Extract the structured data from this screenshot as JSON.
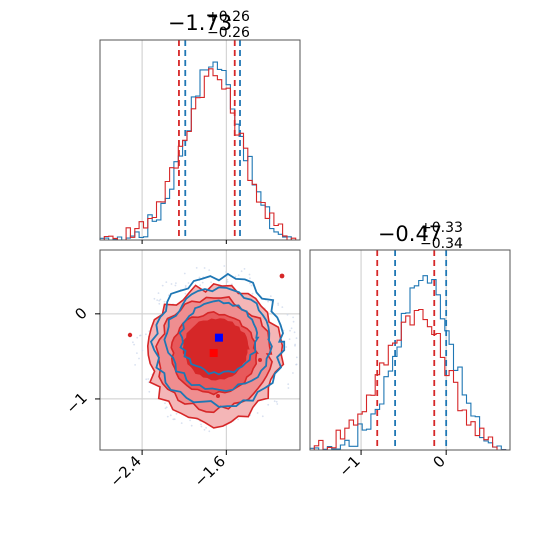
{
  "chart_data": [
    {
      "panel": "marginal-top",
      "type": "line",
      "title": {
        "value": "−1.73",
        "plus": "+0.26",
        "minus": "−0.26"
      },
      "xlim": [
        -2.8,
        -0.9
      ],
      "xticks": [
        -2.4,
        -1.6
      ],
      "xlabel": "",
      "ylabel": "",
      "grid": true,
      "series": [
        {
          "color": "#1f77b4",
          "x": [
            -2.75,
            -2.55,
            -2.45,
            -2.35,
            -2.25,
            -2.15,
            -2.05,
            -1.95,
            -1.85,
            -1.75,
            -1.65,
            -1.55,
            -1.45,
            -1.35,
            -1.25,
            -1.15,
            -1.05,
            -0.95
          ],
          "y": [
            0.0,
            0.01,
            0.03,
            0.07,
            0.14,
            0.27,
            0.46,
            0.67,
            0.88,
            1.0,
            0.96,
            0.8,
            0.57,
            0.35,
            0.18,
            0.07,
            0.02,
            0.0
          ],
          "quantiles": [
            -1.99,
            -1.47
          ]
        },
        {
          "color": "#d62728",
          "x": [
            -2.75,
            -2.55,
            -2.45,
            -2.35,
            -2.25,
            -2.15,
            -2.05,
            -1.95,
            -1.85,
            -1.75,
            -1.65,
            -1.55,
            -1.45,
            -1.35,
            -1.25,
            -1.15,
            -1.05,
            -0.95
          ],
          "y": [
            0.01,
            0.03,
            0.06,
            0.11,
            0.19,
            0.31,
            0.47,
            0.66,
            0.83,
            0.93,
            0.89,
            0.74,
            0.54,
            0.34,
            0.18,
            0.08,
            0.03,
            0.01
          ],
          "quantiles": [
            -2.05,
            -1.52
          ]
        }
      ]
    },
    {
      "panel": "joint",
      "type": "contour",
      "xlim": [
        -2.8,
        -0.9
      ],
      "ylim": [
        -1.6,
        0.75
      ],
      "xticks": [
        -2.4,
        -1.6
      ],
      "yticks": [
        0,
        -1
      ],
      "grid": true,
      "series": [
        {
          "color": "#1f77b4",
          "center": {
            "x": -1.67,
            "y": -0.28
          }
        },
        {
          "color": "#d62728",
          "center": {
            "x": -1.72,
            "y": -0.46
          }
        }
      ]
    },
    {
      "panel": "marginal-right",
      "type": "line",
      "title": {
        "value": "−0.47",
        "plus": "+0.33",
        "minus": "−0.34"
      },
      "xlim": [
        -1.6,
        0.75
      ],
      "xticks": [
        -1,
        0
      ],
      "xlabel": "",
      "ylabel": "",
      "grid": true,
      "series": [
        {
          "color": "#1f77b4",
          "x": [
            -1.55,
            -1.35,
            -1.2,
            -1.05,
            -0.9,
            -0.75,
            -0.6,
            -0.45,
            -0.3,
            -0.15,
            0.0,
            0.15,
            0.3,
            0.45,
            0.6,
            0.7
          ],
          "y": [
            0.0,
            0.01,
            0.03,
            0.07,
            0.16,
            0.31,
            0.55,
            0.8,
            0.98,
            0.93,
            0.72,
            0.42,
            0.19,
            0.07,
            0.02,
            0.0
          ],
          "quantiles": [
            -0.6,
            0.0
          ]
        },
        {
          "color": "#d62728",
          "x": [
            -1.55,
            -1.35,
            -1.2,
            -1.05,
            -0.9,
            -0.75,
            -0.6,
            -0.45,
            -0.3,
            -0.15,
            0.0,
            0.15,
            0.3,
            0.45,
            0.6,
            0.7
          ],
          "y": [
            0.01,
            0.05,
            0.1,
            0.18,
            0.3,
            0.45,
            0.62,
            0.75,
            0.76,
            0.66,
            0.48,
            0.29,
            0.14,
            0.05,
            0.01,
            0.0
          ],
          "quantiles": [
            -0.81,
            -0.14
          ]
        }
      ]
    }
  ]
}
